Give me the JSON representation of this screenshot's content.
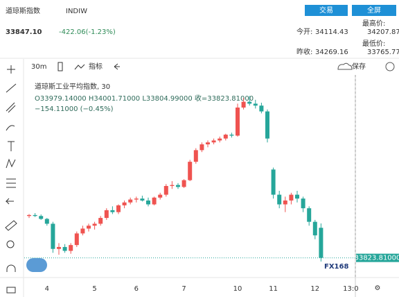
{
  "header": {
    "title": "道琼斯指数",
    "symbol": "INDIW",
    "trade_button": "交易",
    "fullscreen_button": "全屏",
    "price": "33847.10",
    "change": "-422.06(-1.23%)",
    "stats": [
      {
        "label": "今开:",
        "value": "34114.43"
      },
      {
        "label": "最高价:",
        "value": "34207.87"
      },
      {
        "label": "昨收:",
        "value": "34269.16"
      },
      {
        "label": "最低价:",
        "value": "33765.77"
      }
    ]
  },
  "toolbar": {
    "interval": "30m",
    "indicators": "指标",
    "save": "保存"
  },
  "logo": "FX168",
  "chart_data": {
    "type": "candlestick",
    "title": "道琼斯工业平均指数, 30",
    "ohlc_label": "O33979.14000 H34001.71000 L33804.99000 收=33823.81000",
    "change_label": "−154.11000 (−0.45%)",
    "categories": [
      null,
      null,
      null,
      "4",
      null,
      null,
      null,
      null,
      null,
      null,
      null,
      "5",
      null,
      null,
      null,
      null,
      null,
      null,
      "6",
      null,
      null,
      null,
      null,
      null,
      null,
      null,
      "7",
      null,
      null,
      null,
      null,
      null,
      null,
      null,
      null,
      "10",
      null,
      null,
      null,
      null,
      null,
      "11",
      null,
      null,
      null,
      null,
      null,
      null,
      "12",
      null,
      null,
      null,
      null,
      null,
      "13:0"
    ],
    "open": [
      34040,
      34045,
      34040,
      34025,
      34000,
      33870,
      33880,
      33860,
      33890,
      33950,
      33975,
      33990,
      34000,
      34030,
      34070,
      34060,
      34095,
      34110,
      34125,
      34130,
      34120,
      34100,
      34135,
      34150,
      34195,
      34200,
      34190,
      34225,
      34320,
      34380,
      34410,
      34420,
      34430,
      34440,
      34460,
      34455,
      34600,
      34630,
      34620,
      34610,
      34580,
      34280,
      34150,
      34100,
      34120,
      34150,
      34130,
      34080,
      34010,
      33979.14,
      null,
      null,
      null,
      null,
      null
    ],
    "high": [
      34050,
      34055,
      34048,
      34030,
      34010,
      33900,
      33895,
      33900,
      33960,
      33990,
      34000,
      34010,
      34040,
      34080,
      34090,
      34100,
      34120,
      34135,
      34140,
      34145,
      34135,
      34140,
      34160,
      34205,
      34220,
      34210,
      34230,
      34330,
      34390,
      34420,
      34430,
      34440,
      34450,
      34465,
      34470,
      34620,
      34650,
      34660,
      34640,
      34625,
      34590,
      34290,
      34170,
      34140,
      34160,
      34170,
      34140,
      34090,
      34020,
      34001.71,
      null,
      null,
      null,
      null,
      null
    ],
    "low": [
      34030,
      34035,
      34020,
      33990,
      33850,
      33840,
      33850,
      33845,
      33880,
      33940,
      33960,
      33970,
      33990,
      34020,
      34050,
      34050,
      34080,
      34100,
      34110,
      34115,
      34090,
      34095,
      34125,
      34140,
      34180,
      34180,
      34185,
      34220,
      34310,
      34370,
      34395,
      34410,
      34420,
      34430,
      34445,
      34450,
      34590,
      34610,
      34595,
      34570,
      34420,
      34130,
      34080,
      34060,
      34100,
      34110,
      34060,
      33990,
      33920,
      33804.99,
      null,
      null,
      null,
      null,
      null
    ],
    "close": [
      34045,
      34040,
      34025,
      34000,
      33870,
      33880,
      33860,
      33890,
      33950,
      33975,
      33990,
      34000,
      34030,
      34070,
      34060,
      34095,
      34110,
      34125,
      34130,
      34120,
      34100,
      34135,
      34150,
      34195,
      34200,
      34190,
      34225,
      34320,
      34380,
      34410,
      34420,
      34430,
      34440,
      34460,
      34455,
      34600,
      34630,
      34620,
      34610,
      34580,
      34440,
      34150,
      34100,
      34120,
      34150,
      34130,
      34080,
      34010,
      33940,
      33823.81,
      null,
      null,
      null,
      null,
      null
    ],
    "up_color": "#ef5350",
    "down_color": "#26a69a",
    "ylim": [
      33740,
      34840
    ],
    "last_price_label": "33823.81000"
  }
}
